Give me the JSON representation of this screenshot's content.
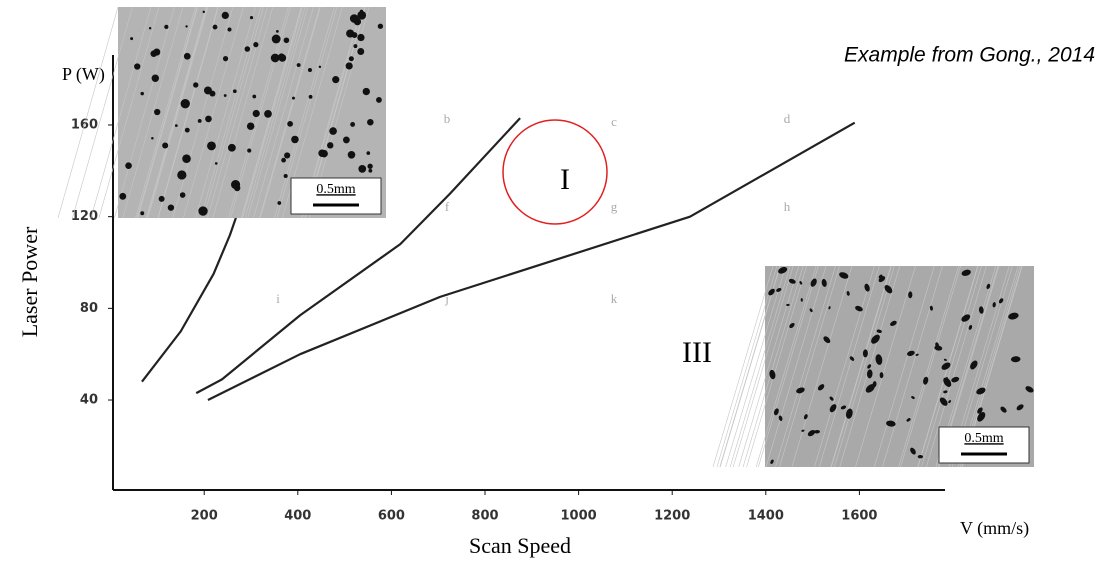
{
  "chart_data": {
    "type": "line",
    "note": "Example from Gong., 2014",
    "y_label": "Laser Power",
    "y_unit_label": "P (W)",
    "x_label": "Scan Speed",
    "x_unit_label": "V (mm/s)",
    "xlim": [
      0,
      1780
    ],
    "ylim": [
      0,
      190
    ],
    "xticks": [
      200,
      400,
      600,
      800,
      1000,
      1200,
      1400,
      1600
    ],
    "yticks": [
      40,
      80,
      120,
      160
    ],
    "grid": false,
    "series": [
      {
        "color": "#222222",
        "x": [
          67,
          150,
          220,
          255,
          272
        ],
        "values": [
          48,
          70,
          95,
          112,
          122
        ]
      },
      {
        "color": "#222222",
        "x": [
          183,
          238,
          405,
          619,
          725,
          875
        ],
        "values": [
          43,
          49,
          77,
          108,
          130,
          163
        ]
      },
      {
        "color": "#222222",
        "x": [
          208,
          405,
          704,
          1238,
          1590
        ],
        "values": [
          40,
          60,
          85,
          120,
          161
        ]
      }
    ],
    "region_labels": [
      "b",
      "c",
      "d",
      "f",
      "g",
      "h",
      "i",
      "j",
      "k"
    ],
    "zone_labels": [
      "I",
      "III"
    ],
    "insets": [
      {
        "scale": "0.5mm"
      },
      {
        "scale": "0.5mm"
      }
    ]
  }
}
